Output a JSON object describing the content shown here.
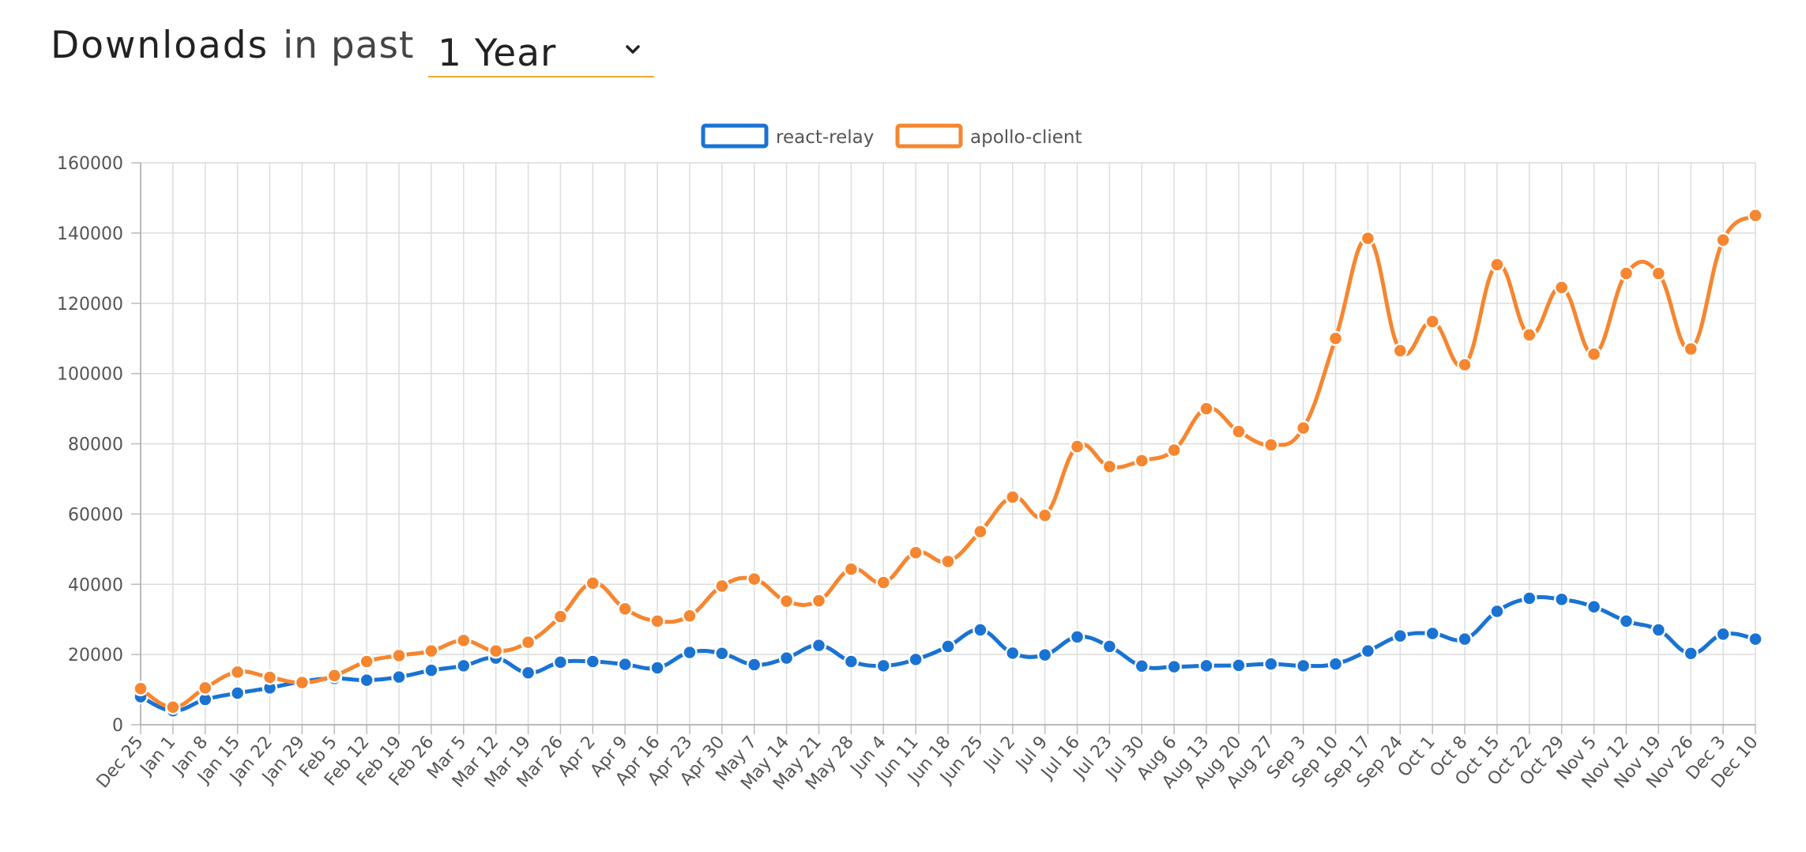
{
  "header": {
    "title": "Downloads",
    "middle": "in past",
    "period_value": "1 Year"
  },
  "chart_data": {
    "type": "line",
    "x": [
      "Dec 25",
      "Jan 1",
      "Jan 8",
      "Jan 15",
      "Jan 22",
      "Jan 29",
      "Feb 5",
      "Feb 12",
      "Feb 19",
      "Feb 26",
      "Mar 5",
      "Mar 12",
      "Mar 19",
      "Mar 26",
      "Apr 2",
      "Apr 9",
      "Apr 16",
      "Apr 23",
      "Apr 30",
      "May 7",
      "May 14",
      "May 21",
      "May 28",
      "Jun 4",
      "Jun 11",
      "Jun 18",
      "Jun 25",
      "Jul 2",
      "Jul 9",
      "Jul 16",
      "Jul 23",
      "Jul 30",
      "Aug 6",
      "Aug 13",
      "Aug 20",
      "Aug 27",
      "Sep 3",
      "Sep 10",
      "Sep 17",
      "Sep 24",
      "Oct 1",
      "Oct 8",
      "Oct 15",
      "Oct 22",
      "Oct 29",
      "Nov 5",
      "Nov 12",
      "Nov 19",
      "Nov 26",
      "Dec 3",
      "Dec 10"
    ],
    "series": [
      {
        "name": "react-relay",
        "color": "#1a73d2",
        "values": [
          8000,
          4000,
          7200,
          9000,
          10500,
          12300,
          13200,
          12700,
          13600,
          15500,
          16800,
          19000,
          14800,
          17800,
          18000,
          17200,
          16200,
          20600,
          20300,
          17100,
          19000,
          22600,
          18000,
          16800,
          18600,
          22300,
          27000,
          20400,
          19900,
          25000,
          22300,
          16700,
          16500,
          16800,
          16900,
          17300,
          16800,
          17300,
          21000,
          25300,
          26000,
          24400,
          32300,
          36000,
          35700,
          33600,
          29500,
          27000,
          20300,
          25800,
          24400
        ]
      },
      {
        "name": "apollo-client",
        "color": "#f68630",
        "values": [
          10300,
          5000,
          10500,
          15000,
          13500,
          12000,
          14000,
          18000,
          19700,
          21000,
          24000,
          21000,
          23500,
          30800,
          40300,
          33000,
          29500,
          31000,
          39500,
          41500,
          35200,
          35300,
          44300,
          40500,
          49000,
          46500,
          55000,
          64800,
          59600,
          79200,
          73500,
          75200,
          78200,
          90000,
          83500,
          79700,
          84500,
          110000,
          138500,
          106500,
          114800,
          102500,
          131000,
          111000,
          124500,
          105500,
          128500,
          128500,
          107000,
          138000,
          145000
        ]
      }
    ],
    "ylim": [
      0,
      160000
    ],
    "yticks": [
      0,
      20000,
      40000,
      60000,
      80000,
      100000,
      120000,
      140000,
      160000
    ],
    "grid": true,
    "legend": "top-center"
  }
}
